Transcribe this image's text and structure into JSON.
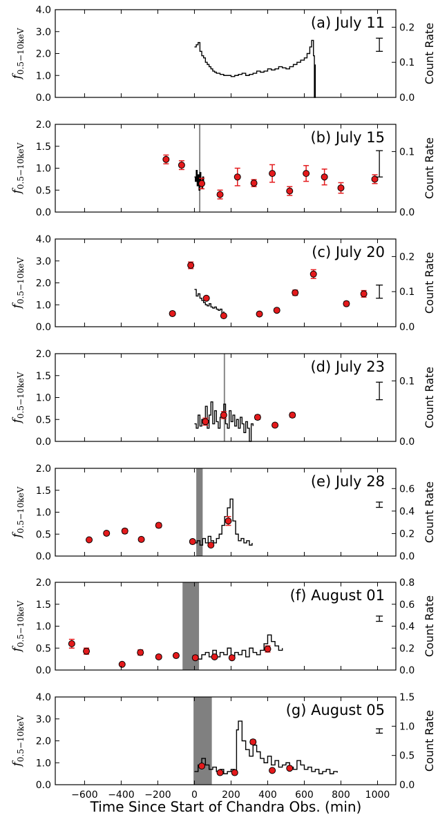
{
  "figure": {
    "xlabel": "Time Since Start of Chandra Obs. (min)",
    "ylabel_left_main": "f",
    "ylabel_left_sub": "0.5−10keV",
    "ylabel_right": "Count Rate",
    "xlim": [
      -760,
      1100
    ],
    "xticks": [
      -600,
      -400,
      -200,
      0,
      200,
      400,
      600,
      800,
      1000
    ]
  },
  "chart_data": [
    {
      "type": "line",
      "title": "(a) July 11",
      "ylim": [
        0,
        4
      ],
      "yticks": [
        "0.0",
        "1.0",
        "2.0",
        "3.0",
        "4.0"
      ],
      "yticks_values": [
        0,
        1,
        2,
        3,
        4
      ],
      "right_ylim": [
        0,
        0.25
      ],
      "right_yticks": [
        "0.0",
        "0.1",
        "0.2"
      ],
      "right_yticks_values": [
        0,
        0.1,
        0.2
      ],
      "errorbar_example": {
        "x": 1010,
        "y": 2.4,
        "err": 0.3
      },
      "series": [
        {
          "x": [
            0,
            10,
            20,
            30,
            40,
            50,
            60,
            70,
            80,
            90,
            100,
            110,
            120,
            140,
            160,
            180,
            200,
            220,
            240,
            260,
            280,
            300,
            320,
            340,
            360,
            380,
            400,
            420,
            440,
            460,
            480,
            500,
            520,
            540,
            560,
            580,
            600,
            615,
            630,
            640,
            650,
            655,
            660
          ],
          "y": [
            2.3,
            2.4,
            2.5,
            2.1,
            1.9,
            1.8,
            1.6,
            1.5,
            1.4,
            1.3,
            1.2,
            1.15,
            1.1,
            1.05,
            1.0,
            1.0,
            0.95,
            1.0,
            1.05,
            1.1,
            1.0,
            1.05,
            1.1,
            1.2,
            1.15,
            1.2,
            1.3,
            1.25,
            1.3,
            1.4,
            1.35,
            1.3,
            1.4,
            1.5,
            1.6,
            1.7,
            1.8,
            2.0,
            2.3,
            2.6,
            1.9,
            0.0,
            1.5
          ]
        }
      ],
      "points": [],
      "shade": []
    },
    {
      "type": "line",
      "title": "(b) July 15",
      "ylim": [
        0,
        2
      ],
      "yticks": [
        "0.0",
        "0.5",
        "1.0",
        "1.5",
        "2.0"
      ],
      "yticks_values": [
        0,
        0.5,
        1,
        1.5,
        2
      ],
      "right_ylim": [
        0,
        0.145
      ],
      "right_yticks": [
        "0.0",
        "0.1"
      ],
      "right_yticks_values": [
        0,
        0.1
      ],
      "errorbar_example": {
        "x": 1010,
        "y": 1.1,
        "err": 0.3
      },
      "series": [
        {
          "x": [
            0,
            5,
            10,
            15,
            20,
            25,
            30,
            35,
            40,
            45,
            50
          ],
          "y": [
            0.8,
            0.7,
            0.95,
            0.6,
            0.85,
            0.5,
            0.9,
            0.7,
            0.55,
            0.8,
            0.6
          ]
        }
      ],
      "points": [
        {
          "x": -155,
          "y": 1.2,
          "err": 0.1
        },
        {
          "x": -70,
          "y": 1.07,
          "err": 0.1
        },
        {
          "x": 40,
          "y": 0.65,
          "err": 0.12
        },
        {
          "x": 140,
          "y": 0.4,
          "err": 0.1
        },
        {
          "x": 235,
          "y": 0.8,
          "err": 0.2
        },
        {
          "x": 325,
          "y": 0.66,
          "err": 0.08
        },
        {
          "x": 425,
          "y": 0.88,
          "err": 0.2
        },
        {
          "x": 520,
          "y": 0.48,
          "err": 0.1
        },
        {
          "x": 610,
          "y": 0.88,
          "err": 0.18
        },
        {
          "x": 710,
          "y": 0.8,
          "err": 0.18
        },
        {
          "x": 800,
          "y": 0.55,
          "err": 0.12
        },
        {
          "x": 985,
          "y": 0.75,
          "err": 0.1
        }
      ],
      "shade": [
        {
          "from": 25,
          "to": 32,
          "color": "#888888"
        }
      ]
    },
    {
      "type": "line",
      "title": "(c) July 20",
      "ylim": [
        0,
        4
      ],
      "yticks": [
        "0.0",
        "1.0",
        "2.0",
        "3.0",
        "4.0"
      ],
      "yticks_values": [
        0,
        1,
        2,
        3,
        4
      ],
      "right_ylim": [
        0,
        0.25
      ],
      "right_yticks": [
        "0.0",
        "0.1",
        "0.2"
      ],
      "right_yticks_values": [
        0,
        0.1,
        0.2
      ],
      "errorbar_example": {
        "x": 1010,
        "y": 1.6,
        "err": 0.3
      },
      "series": [
        {
          "x": [
            0,
            10,
            20,
            30,
            40,
            50,
            60,
            70,
            80,
            90,
            100,
            110,
            120,
            130,
            140,
            150,
            160
          ],
          "y": [
            1.7,
            1.4,
            1.5,
            1.3,
            1.2,
            1.1,
            1.0,
            0.95,
            1.05,
            0.9,
            0.85,
            0.9,
            0.8,
            0.75,
            0.8,
            0.6,
            0.7
          ]
        }
      ],
      "points": [
        {
          "x": -120,
          "y": 0.6,
          "err": 0.08
        },
        {
          "x": -20,
          "y": 2.8,
          "err": 0.15
        },
        {
          "x": 65,
          "y": 1.3,
          "err": 0.08
        },
        {
          "x": 160,
          "y": 0.5,
          "err": 0.06
        },
        {
          "x": 355,
          "y": 0.58,
          "err": 0.06
        },
        {
          "x": 450,
          "y": 0.75,
          "err": 0.08
        },
        {
          "x": 550,
          "y": 1.55,
          "err": 0.12
        },
        {
          "x": 650,
          "y": 2.4,
          "err": 0.2
        },
        {
          "x": 830,
          "y": 1.05,
          "err": 0.1
        },
        {
          "x": 925,
          "y": 1.5,
          "err": 0.15
        }
      ],
      "shade": []
    },
    {
      "type": "line",
      "title": "(d) July 23",
      "ylim": [
        0,
        2
      ],
      "yticks": [
        "0.0",
        "0.5",
        "1.0",
        "1.5",
        "2.0"
      ],
      "yticks_values": [
        0,
        0.5,
        1,
        1.5,
        2
      ],
      "right_ylim": [
        0,
        0.145
      ],
      "right_yticks": [
        "0.0",
        "0.1"
      ],
      "right_yticks_values": [
        0,
        0.1
      ],
      "errorbar_example": {
        "x": 1010,
        "y": 1.15,
        "err": 0.2
      },
      "series": [
        {
          "x": [
            0,
            10,
            20,
            30,
            40,
            50,
            60,
            70,
            80,
            90,
            100,
            110,
            120,
            130,
            140,
            150,
            160,
            170,
            180,
            190,
            200,
            210,
            220,
            230,
            240,
            250,
            260,
            270,
            280,
            290,
            300,
            310,
            320
          ],
          "y": [
            0.4,
            0.3,
            0.6,
            0.35,
            0.5,
            0.4,
            0.8,
            0.3,
            0.6,
            0.9,
            0.4,
            0.7,
            0.45,
            0.3,
            0.55,
            0.6,
            0.85,
            0.4,
            0.3,
            0.7,
            0.45,
            0.6,
            0.35,
            0.5,
            0.3,
            0.55,
            0.4,
            0.2,
            0.45,
            0.3,
            0.0,
            0.4,
            0.35
          ]
        }
      ],
      "points": [
        {
          "x": 60,
          "y": 0.45,
          "err": 0.08
        },
        {
          "x": 160,
          "y": 0.6,
          "err": 0.08
        },
        {
          "x": 345,
          "y": 0.55,
          "err": 0.05
        },
        {
          "x": 440,
          "y": 0.37,
          "err": 0.04
        },
        {
          "x": 535,
          "y": 0.6,
          "err": 0.05
        }
      ],
      "shade": [
        {
          "from": 160,
          "to": 166,
          "color": "#888888"
        }
      ]
    },
    {
      "type": "line",
      "title": "(e) July 28",
      "ylim": [
        0,
        2
      ],
      "yticks": [
        "0.0",
        "0.5",
        "1.0",
        "1.5",
        "2.0"
      ],
      "yticks_values": [
        0,
        0.5,
        1,
        1.5,
        2
      ],
      "right_ylim": [
        0,
        0.78
      ],
      "right_yticks": [
        "0.0",
        "0.2",
        "0.4",
        "0.6"
      ],
      "right_yticks_values": [
        0,
        0.2,
        0.4,
        0.6
      ],
      "errorbar_example": {
        "x": 1010,
        "y": 1.17,
        "err": 0.06
      },
      "series": [
        {
          "x": [
            0,
            15,
            30,
            45,
            60,
            75,
            90,
            105,
            120,
            135,
            150,
            165,
            180,
            195,
            210,
            225,
            240,
            255,
            270,
            285,
            300,
            315
          ],
          "y": [
            0.3,
            0.35,
            0.25,
            0.4,
            0.3,
            0.45,
            0.35,
            0.3,
            0.4,
            0.5,
            0.7,
            0.9,
            1.1,
            1.3,
            0.8,
            0.5,
            0.35,
            0.4,
            0.3,
            0.35,
            0.25,
            0.3
          ]
        }
      ],
      "points": [
        {
          "x": -575,
          "y": 0.37,
          "err": 0.03
        },
        {
          "x": -480,
          "y": 0.52,
          "err": 0.04
        },
        {
          "x": -380,
          "y": 0.57,
          "err": 0.05
        },
        {
          "x": -290,
          "y": 0.38,
          "err": 0.04
        },
        {
          "x": -195,
          "y": 0.7,
          "err": 0.05
        },
        {
          "x": -10,
          "y": 0.33,
          "err": 0.03
        },
        {
          "x": 90,
          "y": 0.25,
          "err": 0.03
        },
        {
          "x": 185,
          "y": 0.8,
          "err": 0.1
        }
      ],
      "shade": [
        {
          "from": 10,
          "to": 45,
          "color": "#808080"
        }
      ]
    },
    {
      "type": "line",
      "title": "(f) August 01",
      "ylim": [
        0,
        2
      ],
      "yticks": [
        "0.0",
        "0.5",
        "1.0",
        "1.5",
        "2.0"
      ],
      "yticks_values": [
        0,
        0.5,
        1,
        1.5,
        2
      ],
      "right_ylim": [
        0,
        0.8
      ],
      "right_yticks": [
        "0.0",
        "0.2",
        "0.4",
        "0.6",
        "0.8"
      ],
      "right_yticks_values": [
        0,
        0.2,
        0.4,
        0.6,
        0.8
      ],
      "errorbar_example": {
        "x": 1010,
        "y": 1.17,
        "err": 0.06
      },
      "series": [
        {
          "x": [
            0,
            20,
            40,
            60,
            80,
            100,
            120,
            140,
            160,
            180,
            200,
            220,
            240,
            260,
            280,
            300,
            320,
            340,
            360,
            380,
            400,
            420,
            440,
            460,
            480
          ],
          "y": [
            0.3,
            0.25,
            0.35,
            0.4,
            0.3,
            0.45,
            0.3,
            0.4,
            0.35,
            0.5,
            0.3,
            0.4,
            0.35,
            0.45,
            0.3,
            0.5,
            0.4,
            0.35,
            0.45,
            0.6,
            0.8,
            0.65,
            0.55,
            0.45,
            0.5
          ]
        }
      ],
      "points": [
        {
          "x": -670,
          "y": 0.6,
          "err": 0.1
        },
        {
          "x": -590,
          "y": 0.43,
          "err": 0.07
        },
        {
          "x": -395,
          "y": 0.13,
          "err": 0.03
        },
        {
          "x": -295,
          "y": 0.4,
          "err": 0.06
        },
        {
          "x": -195,
          "y": 0.3,
          "err": 0.04
        },
        {
          "x": -100,
          "y": 0.33,
          "err": 0.03
        },
        {
          "x": 5,
          "y": 0.28,
          "err": 0.05
        },
        {
          "x": 110,
          "y": 0.3,
          "err": 0.04
        },
        {
          "x": 205,
          "y": 0.28,
          "err": 0.04
        },
        {
          "x": 400,
          "y": 0.48,
          "err": 0.07
        }
      ],
      "shade": [
        {
          "from": -65,
          "to": 25,
          "color": "#808080"
        }
      ]
    },
    {
      "type": "line",
      "title": "(g) August 05",
      "ylim": [
        0,
        4
      ],
      "yticks": [
        "0.0",
        "1.0",
        "2.0",
        "3.0",
        "4.0"
      ],
      "yticks_values": [
        0,
        1,
        2,
        3,
        4
      ],
      "right_ylim": [
        0,
        1.5
      ],
      "right_yticks": [
        "0.0",
        "0.5",
        "1.0",
        "1.5"
      ],
      "right_yticks_values": [
        0,
        0.5,
        1,
        1.5
      ],
      "errorbar_example": {
        "x": 1010,
        "y": 2.45,
        "err": 0.1
      },
      "series": [
        {
          "x": [
            0,
            20,
            40,
            60,
            80,
            100,
            120,
            140,
            160,
            180,
            200,
            220,
            230,
            240,
            260,
            280,
            300,
            320,
            340,
            360,
            380,
            400,
            420,
            440,
            460,
            480,
            500,
            520,
            540,
            560,
            580,
            600,
            620,
            640,
            660,
            680,
            700,
            720,
            740,
            760,
            780
          ],
          "y": [
            0.6,
            0.9,
            1.2,
            0.9,
            0.7,
            0.8,
            0.6,
            0.7,
            0.5,
            0.6,
            0.7,
            0.6,
            2.5,
            2.9,
            2.0,
            1.6,
            1.3,
            1.8,
            1.5,
            1.2,
            1.0,
            1.3,
            0.9,
            1.1,
            0.8,
            0.9,
            1.0,
            0.8,
            0.7,
            1.1,
            0.9,
            0.7,
            0.8,
            0.6,
            0.7,
            0.5,
            0.6,
            0.7,
            0.5,
            0.6,
            0.55
          ]
        }
      ],
      "points": [
        {
          "x": 40,
          "y": 0.85,
          "err": 0.08
        },
        {
          "x": 140,
          "y": 0.55,
          "err": 0.06
        },
        {
          "x": 220,
          "y": 0.55,
          "err": 0.06
        },
        {
          "x": 320,
          "y": 1.95,
          "err": 0.1
        },
        {
          "x": 425,
          "y": 0.65,
          "err": 0.06
        },
        {
          "x": 520,
          "y": 0.75,
          "err": 0.06
        }
      ],
      "shade": [
        {
          "from": -5,
          "to": 95,
          "color": "#808080"
        }
      ]
    }
  ],
  "colors": {
    "marker_fill": "#e41a1c",
    "marker_edge": "#000000",
    "errorbar": "#e41a1c",
    "line": "#000000"
  }
}
